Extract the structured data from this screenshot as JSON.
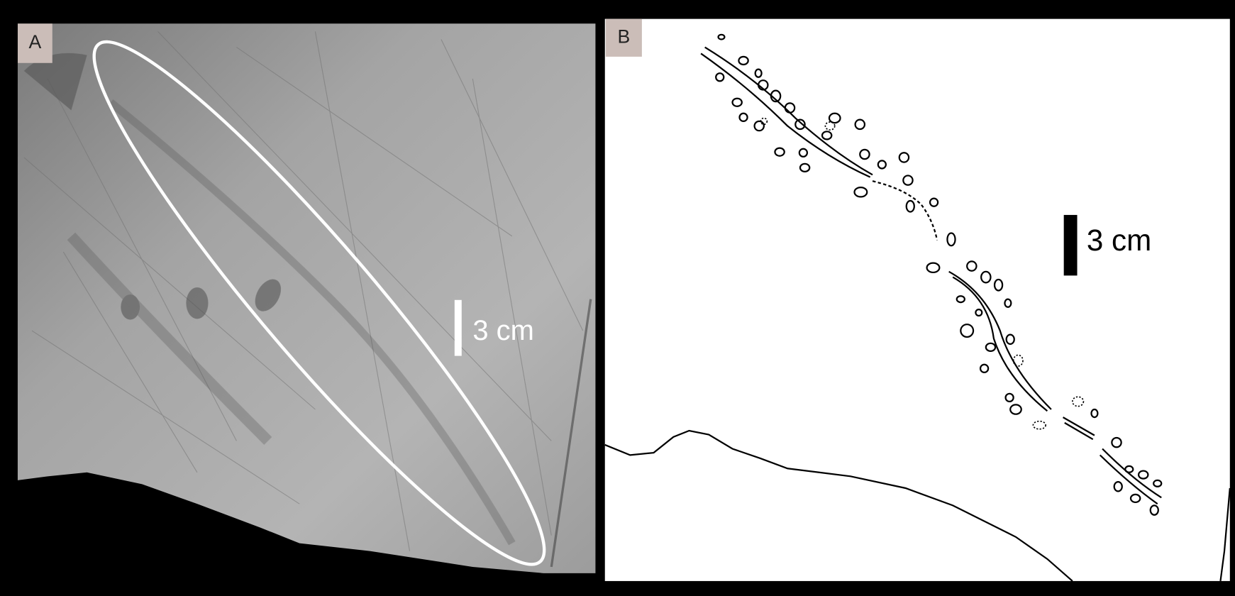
{
  "panels": [
    {
      "label": "A",
      "scale_label": "3 cm"
    },
    {
      "label": "B",
      "scale_label": "3 cm"
    }
  ]
}
